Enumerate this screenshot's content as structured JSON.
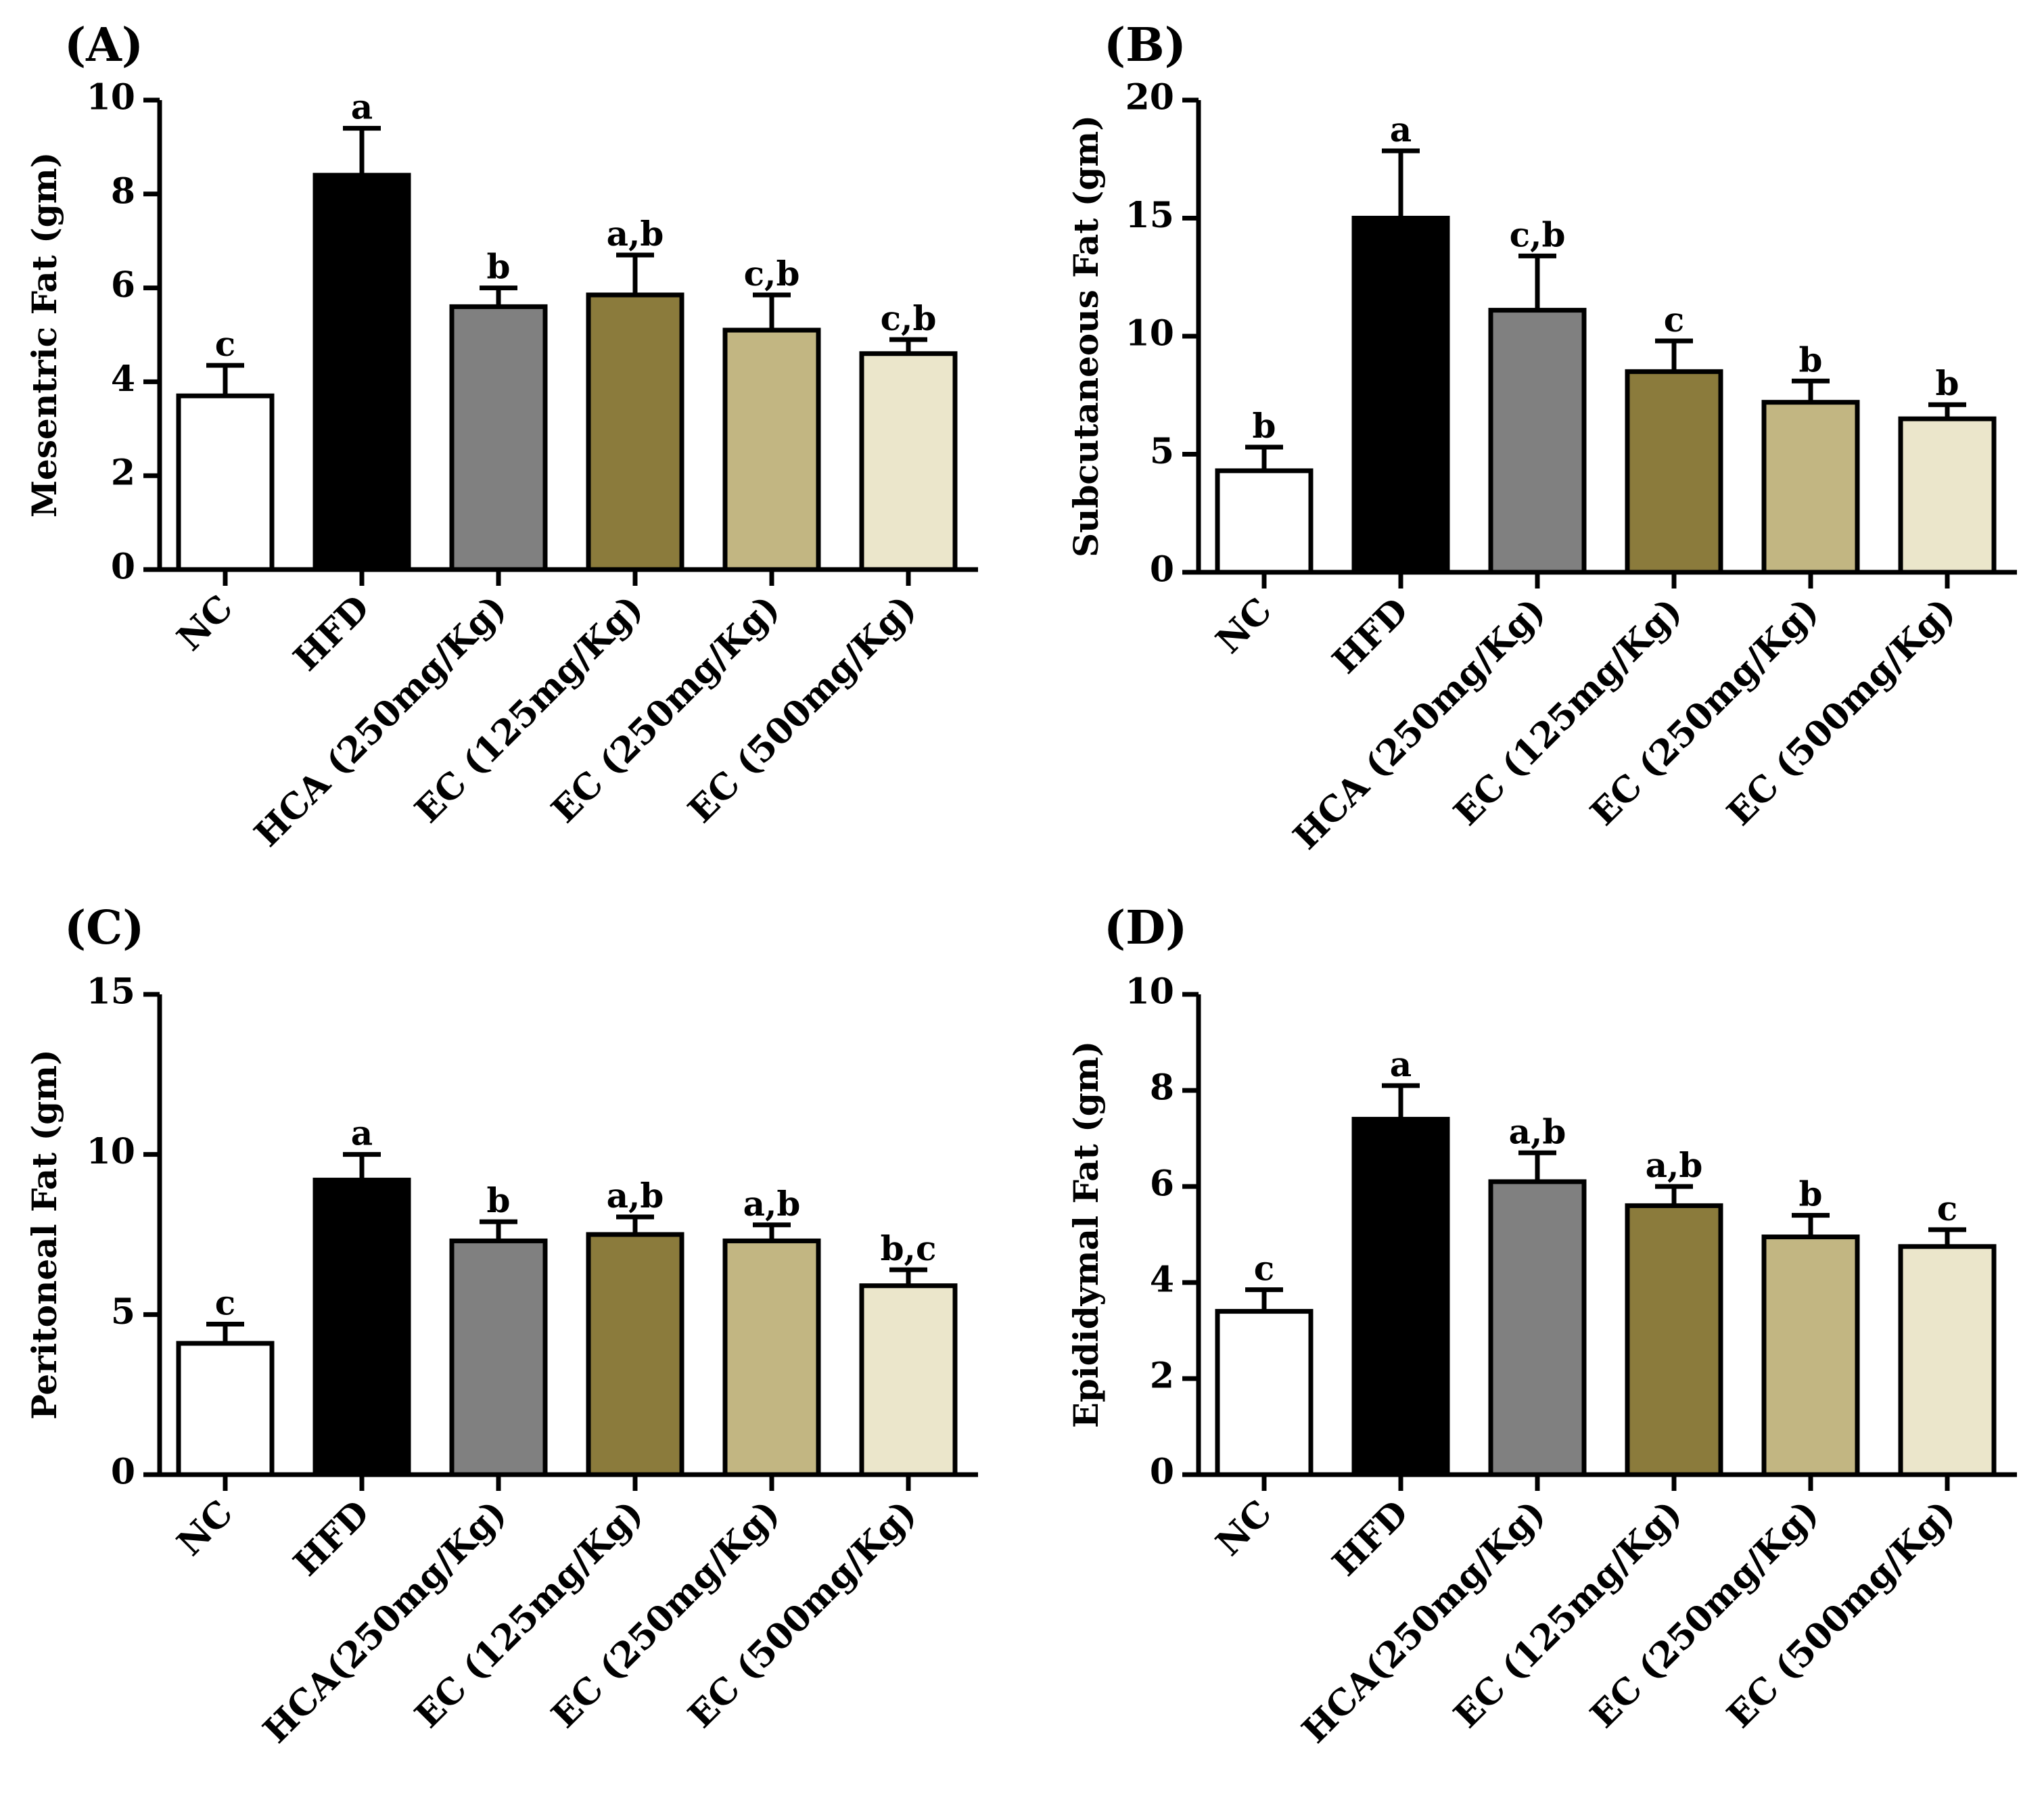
{
  "figure": {
    "categories": [
      "NC",
      "HFD",
      "HCA(250mg/Kg)",
      "EC (125mg/Kg)",
      "EC (250mg/Kg)",
      "EC (500mg/Kg)"
    ],
    "bar_colors": [
      "#ffffff",
      "#000000",
      "#808080",
      "#8b7b3c",
      "#c2b682",
      "#ebe6cb"
    ]
  },
  "chart_data": [
    {
      "type": "bar",
      "panel_label": "(A)",
      "ylabel": "Mesentric Fat (gm)",
      "ylim": [
        0,
        10
      ],
      "yticks": [
        0,
        2,
        4,
        6,
        8,
        10
      ],
      "categories": [
        "NC",
        "HFD",
        "HCA (250mg/Kg)",
        "EC (125mg/Kg)",
        "EC (250mg/Kg)",
        "EC (500mg/Kg)"
      ],
      "values": [
        3.7,
        8.4,
        5.6,
        5.85,
        5.1,
        4.6
      ],
      "errors": [
        0.65,
        1.0,
        0.4,
        0.85,
        0.75,
        0.3
      ],
      "significance_labels": [
        "c",
        "a",
        "b",
        "a,b",
        "c,b",
        "c,b"
      ]
    },
    {
      "type": "bar",
      "panel_label": "(B)",
      "ylabel": "Subcutaneous Fat (gm)",
      "ylim": [
        0,
        20
      ],
      "yticks": [
        0,
        5,
        10,
        15,
        20
      ],
      "categories": [
        "NC",
        "HFD",
        "HCA (250mg/Kg)",
        "EC (125mg/Kg)",
        "EC (250mg/Kg)",
        "EC (500mg/Kg)"
      ],
      "values": [
        4.3,
        15.0,
        11.1,
        8.5,
        7.2,
        6.5
      ],
      "errors": [
        1.0,
        2.85,
        2.3,
        1.3,
        0.9,
        0.6
      ],
      "significance_labels": [
        "b",
        "a",
        "c,b",
        "c",
        "b",
        "b"
      ]
    },
    {
      "type": "bar",
      "panel_label": "(C)",
      "ylabel": "Peritoneal Fat (gm)",
      "ylim": [
        0,
        15
      ],
      "yticks": [
        0,
        5,
        10,
        15
      ],
      "categories": [
        "NC",
        "HFD",
        "HCA(250mg/Kg)",
        "EC (125mg/Kg)",
        "EC (250mg/Kg)",
        "EC (500mg/Kg)"
      ],
      "values": [
        4.1,
        9.2,
        7.3,
        7.5,
        7.3,
        5.9
      ],
      "errors": [
        0.6,
        0.8,
        0.6,
        0.55,
        0.5,
        0.5
      ],
      "significance_labels": [
        "c",
        "a",
        "b",
        "a,b",
        "a,b",
        "b,c"
      ]
    },
    {
      "type": "bar",
      "panel_label": "(D)",
      "ylabel": "Epididymal Fat (gm)",
      "ylim": [
        0,
        10
      ],
      "yticks": [
        0,
        2,
        4,
        6,
        8,
        10
      ],
      "categories": [
        "NC",
        "HFD",
        "HCA(250mg/Kg)",
        "EC (125mg/Kg)",
        "EC (250mg/Kg)",
        "EC (500mg/Kg)"
      ],
      "values": [
        3.4,
        7.4,
        6.1,
        5.6,
        4.95,
        4.75
      ],
      "errors": [
        0.45,
        0.7,
        0.6,
        0.4,
        0.45,
        0.35
      ],
      "significance_labels": [
        "c",
        "a",
        "a,b",
        "a,b",
        "b",
        "c"
      ]
    }
  ]
}
